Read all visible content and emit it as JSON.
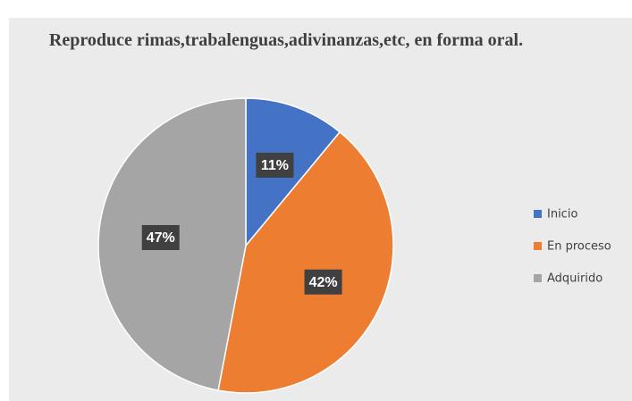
{
  "chart_data": {
    "type": "pie",
    "title": "Reproduce rimas,trabalenguas,adivinanzas,etc, en forma oral.",
    "categories": [
      "Inicio",
      "En proceso",
      "Adquirido"
    ],
    "values": [
      11,
      42,
      47
    ],
    "value_labels": [
      "11%",
      "42%",
      "47%"
    ],
    "colors": [
      "#4472c4",
      "#ed7d31",
      "#a5a5a5"
    ],
    "legend": "right"
  }
}
